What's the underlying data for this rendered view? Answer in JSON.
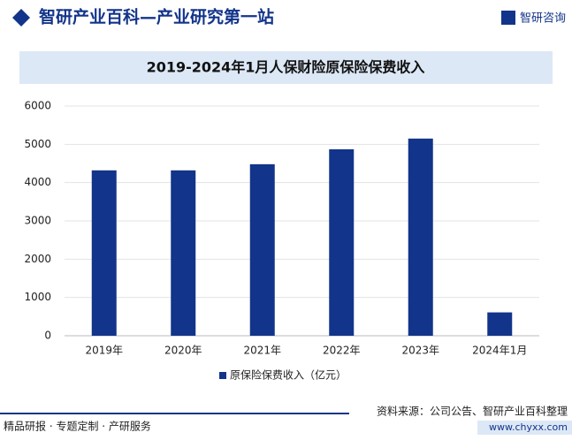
{
  "header": {
    "title": "智研产业百科—产业研究第一站",
    "logo": "智研咨询"
  },
  "chart_data": {
    "type": "bar",
    "title": "2019-2024年1月人保财险原保险保费收入",
    "categories": [
      "2019年",
      "2020年",
      "2021年",
      "2022年",
      "2023年",
      "2024年1月"
    ],
    "series": [
      {
        "name": "原保险保费收入（亿元）",
        "color": "#12348a",
        "values": [
          4320,
          4320,
          4480,
          4870,
          5150,
          610
        ]
      }
    ],
    "ylim": [
      0,
      6000
    ],
    "yticks": [
      0,
      1000,
      2000,
      3000,
      4000,
      5000,
      6000
    ],
    "grid": true
  },
  "footer": {
    "left": "精品研报 · 专题定制 · 产研服务",
    "source": "资料来源：公司公告、智研产业百科整理",
    "url": "www.chyxx.com"
  }
}
